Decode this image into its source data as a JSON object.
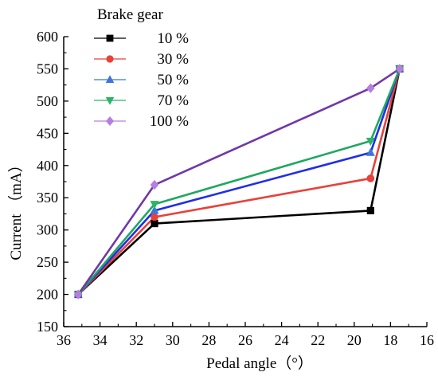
{
  "chart_data": {
    "type": "line",
    "title": "",
    "xlabel": "Pedal angle（°）",
    "ylabel": "Current （mA）",
    "xlim": [
      36,
      16
    ],
    "ylim": [
      150,
      600
    ],
    "x_reversed": true,
    "xticks": [
      36,
      34,
      32,
      30,
      28,
      26,
      24,
      22,
      20,
      18,
      16
    ],
    "yticks": [
      150,
      200,
      250,
      300,
      350,
      400,
      450,
      500,
      550,
      600
    ],
    "legend_title": "Brake gear",
    "legend_position": "top-left",
    "grid": false,
    "x": [
      35.2,
      31,
      19.1,
      17.5
    ],
    "series": [
      {
        "name": "10 %",
        "values": [
          200,
          310,
          330,
          550
        ],
        "color": "#000000",
        "line_color": "#000000",
        "marker": "square"
      },
      {
        "name": "30 %",
        "values": [
          200,
          320,
          380,
          550
        ],
        "color": "#e8413a",
        "line_color": "#e8413a",
        "marker": "circle"
      },
      {
        "name": "50 %",
        "values": [
          200,
          330,
          420,
          550
        ],
        "color": "#3f74d8",
        "line_color": "#1f2ee8",
        "marker": "triangle-up"
      },
      {
        "name": "70 %",
        "values": [
          200,
          340,
          438,
          550
        ],
        "color": "#2bb36a",
        "line_color": "#1ea860",
        "marker": "triangle-down"
      },
      {
        "name": "100 %",
        "values": [
          200,
          370,
          520,
          550
        ],
        "color": "#b57fe0",
        "line_color": "#7038a8",
        "marker": "diamond"
      }
    ]
  }
}
